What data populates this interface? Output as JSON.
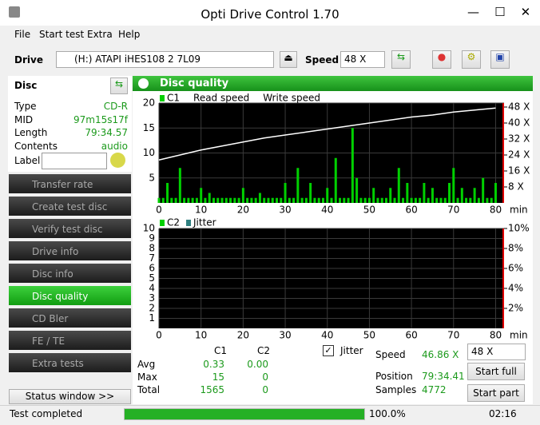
{
  "window": {
    "title": "Opti Drive Control 1.70"
  },
  "menu": [
    "File",
    "Start test",
    "Extra",
    "Help"
  ],
  "toolbar": {
    "drive_label": "Drive",
    "drive": "(H:)   ATAPI iHES108   2 7L09",
    "speed_label": "Speed",
    "speed": "48 X"
  },
  "disc": {
    "title": "Disc",
    "fields": [
      {
        "label": "Type",
        "value": "CD-R"
      },
      {
        "label": "MID",
        "value": "97m15s17f"
      },
      {
        "label": "Length",
        "value": "79:34.57"
      },
      {
        "label": "Contents",
        "value": "audio"
      }
    ],
    "label_field": "Label"
  },
  "nav": [
    {
      "label": "Transfer rate",
      "active": false
    },
    {
      "label": "Create test disc",
      "active": false
    },
    {
      "label": "Verify test disc",
      "active": false
    },
    {
      "label": "Drive info",
      "active": false
    },
    {
      "label": "Disc info",
      "active": false
    },
    {
      "label": "Disc quality",
      "active": true
    },
    {
      "label": "CD Bler",
      "active": false
    },
    {
      "label": "FE / TE",
      "active": false
    },
    {
      "label": "Extra tests",
      "active": false
    }
  ],
  "status_button": "Status window >>",
  "panel": {
    "title": "Disc quality"
  },
  "charts": [
    {
      "type": "bar",
      "x_unit": "min",
      "xlim": [
        0,
        82
      ],
      "xticks": [
        0,
        10,
        20,
        30,
        40,
        50,
        60,
        70,
        80
      ],
      "ylim": [
        0,
        20
      ],
      "yticks": [
        5,
        10,
        15,
        20
      ],
      "y2lim": [
        0,
        50
      ],
      "y2ticks": [
        {
          "value": 8,
          "label": "8 X"
        },
        {
          "value": 16,
          "label": "16 X"
        },
        {
          "value": 24,
          "label": "24 X"
        },
        {
          "value": 32,
          "label": "32 X"
        },
        {
          "value": 40,
          "label": "40 X"
        },
        {
          "value": 48,
          "label": "48 X"
        }
      ],
      "grid": true,
      "series": [
        {
          "name": "C1",
          "color": "#00d000",
          "kind": "bar",
          "x": [
            0,
            1,
            2,
            3,
            4,
            5,
            6,
            7,
            8,
            9,
            10,
            11,
            12,
            13,
            14,
            15,
            16,
            17,
            18,
            19,
            20,
            21,
            22,
            23,
            24,
            25,
            26,
            27,
            28,
            29,
            30,
            31,
            32,
            33,
            34,
            35,
            36,
            37,
            38,
            39,
            40,
            41,
            42,
            43,
            44,
            45,
            46,
            47,
            48,
            49,
            50,
            51,
            52,
            53,
            54,
            55,
            56,
            57,
            58,
            59,
            60,
            61,
            62,
            63,
            64,
            65,
            66,
            67,
            68,
            69,
            70,
            71,
            72,
            73,
            74,
            75,
            76,
            77,
            78,
            79,
            80
          ],
          "values": [
            1,
            1,
            4,
            1,
            1,
            7,
            1,
            1,
            1,
            1,
            3,
            1,
            2,
            1,
            1,
            1,
            1,
            1,
            1,
            1,
            3,
            1,
            1,
            1,
            2,
            1,
            1,
            1,
            1,
            1,
            4,
            1,
            1,
            7,
            1,
            1,
            4,
            1,
            1,
            1,
            3,
            1,
            9,
            1,
            1,
            1,
            15,
            5,
            1,
            1,
            1,
            3,
            1,
            1,
            1,
            3,
            1,
            7,
            1,
            4,
            1,
            1,
            1,
            4,
            1,
            3,
            1,
            1,
            1,
            4,
            7,
            1,
            3,
            1,
            1,
            3,
            1,
            5,
            1,
            1,
            4
          ]
        },
        {
          "name": "Read speed",
          "color": "#ffffff",
          "kind": "line",
          "axis": "y2",
          "x": [
            0,
            5,
            10,
            15,
            20,
            25,
            30,
            35,
            40,
            45,
            50,
            55,
            60,
            65,
            70,
            75,
            80
          ],
          "values": [
            21.5,
            24,
            26.5,
            28.5,
            30.5,
            32.5,
            34,
            35.5,
            37,
            38.5,
            40,
            41.5,
            43,
            44,
            45.5,
            46.5,
            47.5
          ]
        },
        {
          "name": "Write speed",
          "color": "#ffffff",
          "kind": "line",
          "axis": "y2"
        }
      ]
    },
    {
      "type": "bar",
      "x_unit": "min",
      "xlim": [
        0,
        82
      ],
      "xticks": [
        0,
        10,
        20,
        30,
        40,
        50,
        60,
        70,
        80
      ],
      "ylim": [
        0,
        10
      ],
      "yticks": [
        1,
        2,
        3,
        4,
        5,
        6,
        7,
        8,
        9,
        10
      ],
      "y2lim": [
        0,
        10
      ],
      "y2ticks": [
        {
          "value": 2,
          "label": "2%"
        },
        {
          "value": 4,
          "label": "4%"
        },
        {
          "value": 6,
          "label": "6%"
        },
        {
          "value": 8,
          "label": "8%"
        },
        {
          "value": 10,
          "label": "10%"
        }
      ],
      "grid": true,
      "series": [
        {
          "name": "C2",
          "color": "#00d000",
          "kind": "bar"
        },
        {
          "name": "Jitter",
          "color": "#2f8080",
          "kind": "line",
          "axis": "y2"
        }
      ]
    }
  ],
  "stats": {
    "columns": [
      "C1",
      "C2"
    ],
    "rows": [
      {
        "label": "Avg",
        "values": [
          0.33,
          "0.00"
        ]
      },
      {
        "label": "Max",
        "values": [
          15,
          0
        ]
      },
      {
        "label": "Total",
        "values": [
          1565,
          0
        ]
      }
    ],
    "jitter_label": "Jitter"
  },
  "results": {
    "speed_label": "Speed",
    "speed": "46.86 X",
    "speed_select": "48 X",
    "position_label": "Position",
    "position": "79:34.41",
    "samples_label": "Samples",
    "samples": 4772,
    "start_full": "Start full",
    "start_part": "Start part"
  },
  "statusbar": {
    "text": "Test completed",
    "progress": {
      "value": 100,
      "label": "100.0%"
    },
    "time": "02:16"
  }
}
